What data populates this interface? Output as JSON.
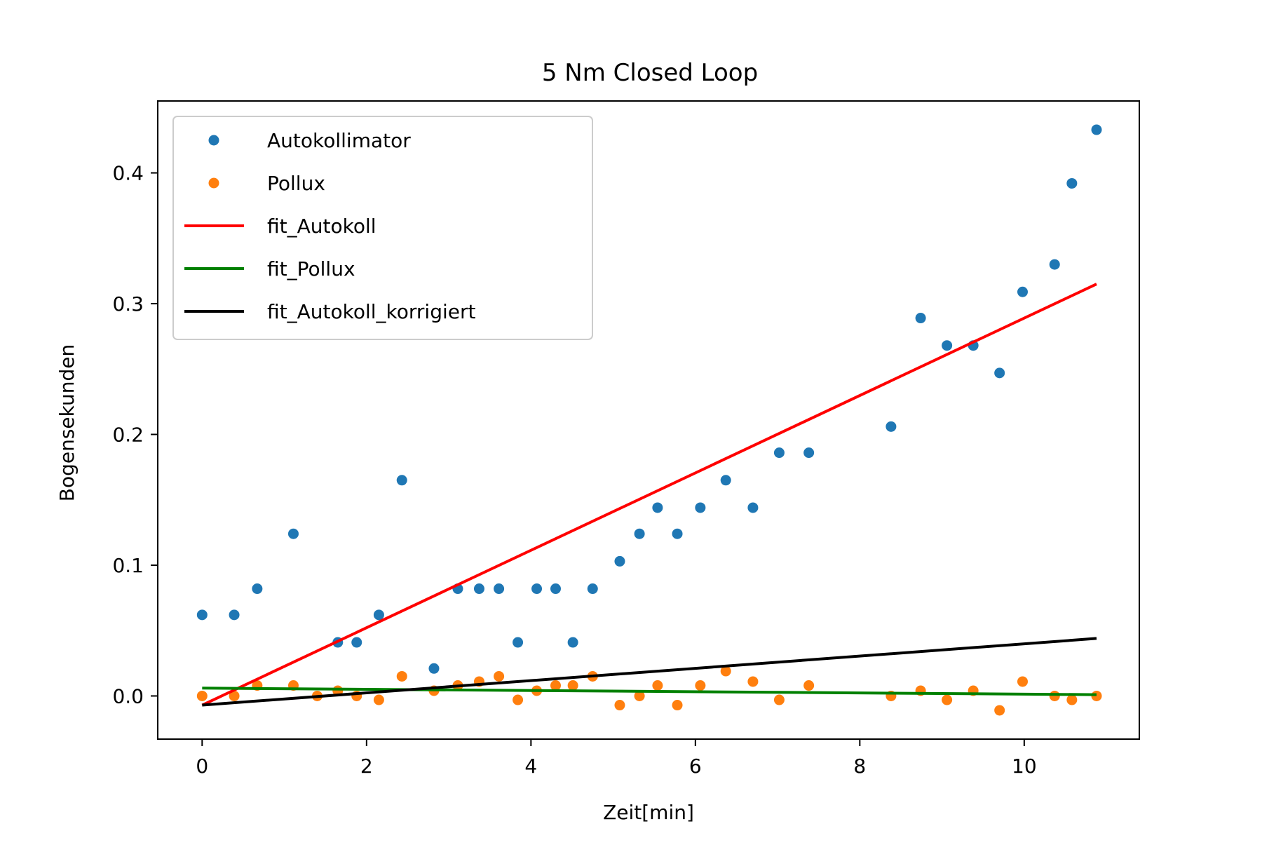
{
  "chart_data": {
    "type": "scatter",
    "title": "5 Nm Closed Loop",
    "xlabel": "Zeit[min]",
    "ylabel": "Bogensekunden",
    "xlim": [
      -0.54,
      11.4
    ],
    "ylim": [
      -0.033,
      0.455
    ],
    "xticks": [
      {
        "value": 0,
        "label": "0"
      },
      {
        "value": 2,
        "label": "2"
      },
      {
        "value": 4,
        "label": "4"
      },
      {
        "value": 6,
        "label": "6"
      },
      {
        "value": 8,
        "label": "8"
      },
      {
        "value": 10,
        "label": "10"
      }
    ],
    "yticks": [
      {
        "value": 0.0,
        "label": "0.0"
      },
      {
        "value": 0.1,
        "label": "0.1"
      },
      {
        "value": 0.2,
        "label": "0.2"
      },
      {
        "value": 0.3,
        "label": "0.3"
      },
      {
        "value": 0.4,
        "label": "0.4"
      }
    ],
    "grid": false,
    "legend_position": "upper-left",
    "scatter_series": [
      {
        "name": "Autokollimator",
        "color": "#1f77b4",
        "points": [
          [
            0.0,
            0.062
          ],
          [
            0.39,
            0.062
          ],
          [
            0.67,
            0.082
          ],
          [
            1.11,
            0.124
          ],
          [
            1.65,
            0.041
          ],
          [
            1.88,
            0.041
          ],
          [
            2.15,
            0.062
          ],
          [
            2.43,
            0.165
          ],
          [
            2.82,
            0.021
          ],
          [
            3.11,
            0.082
          ],
          [
            3.37,
            0.082
          ],
          [
            3.61,
            0.082
          ],
          [
            3.84,
            0.041
          ],
          [
            4.07,
            0.082
          ],
          [
            4.3,
            0.082
          ],
          [
            4.51,
            0.041
          ],
          [
            4.75,
            0.082
          ],
          [
            5.08,
            0.103
          ],
          [
            5.32,
            0.124
          ],
          [
            5.54,
            0.144
          ],
          [
            5.78,
            0.124
          ],
          [
            6.06,
            0.144
          ],
          [
            6.37,
            0.165
          ],
          [
            6.7,
            0.144
          ],
          [
            7.02,
            0.186
          ],
          [
            7.38,
            0.186
          ],
          [
            8.38,
            0.206
          ],
          [
            8.74,
            0.289
          ],
          [
            9.06,
            0.268
          ],
          [
            9.38,
            0.268
          ],
          [
            9.7,
            0.247
          ],
          [
            9.98,
            0.309
          ],
          [
            10.37,
            0.33
          ],
          [
            10.58,
            0.392
          ],
          [
            10.88,
            0.433
          ]
        ]
      },
      {
        "name": "Pollux",
        "color": "#ff7f0e",
        "points": [
          [
            0.0,
            0.0
          ],
          [
            0.39,
            0.0
          ],
          [
            0.67,
            0.008
          ],
          [
            1.11,
            0.008
          ],
          [
            1.4,
            0.0
          ],
          [
            1.65,
            0.004
          ],
          [
            1.88,
            0.0
          ],
          [
            2.15,
            -0.003
          ],
          [
            2.43,
            0.015
          ],
          [
            2.82,
            0.004
          ],
          [
            3.11,
            0.008
          ],
          [
            3.37,
            0.011
          ],
          [
            3.61,
            0.015
          ],
          [
            3.84,
            -0.003
          ],
          [
            4.07,
            0.004
          ],
          [
            4.3,
            0.008
          ],
          [
            4.51,
            0.008
          ],
          [
            4.75,
            0.015
          ],
          [
            5.08,
            -0.007
          ],
          [
            5.32,
            0.0
          ],
          [
            5.54,
            0.008
          ],
          [
            5.78,
            -0.007
          ],
          [
            6.06,
            0.008
          ],
          [
            6.37,
            0.019
          ],
          [
            6.7,
            0.011
          ],
          [
            7.02,
            -0.003
          ],
          [
            7.38,
            0.008
          ],
          [
            8.38,
            0.0
          ],
          [
            8.74,
            0.004
          ],
          [
            9.06,
            -0.003
          ],
          [
            9.38,
            0.004
          ],
          [
            9.7,
            -0.011
          ],
          [
            9.98,
            0.011
          ],
          [
            10.37,
            0.0
          ],
          [
            10.58,
            -0.003
          ],
          [
            10.88,
            0.0
          ]
        ]
      }
    ],
    "line_series": [
      {
        "name": "fit_Autokoll",
        "color": "#ff0000",
        "points": [
          [
            0.0,
            -0.007
          ],
          [
            10.88,
            0.315
          ]
        ]
      },
      {
        "name": "fit_Pollux",
        "color": "#008000",
        "points": [
          [
            0.0,
            0.006
          ],
          [
            10.88,
            0.001
          ]
        ]
      },
      {
        "name": "fit_Autokoll_korrigiert",
        "color": "#000000",
        "points": [
          [
            0.0,
            -0.007
          ],
          [
            10.88,
            0.044
          ]
        ]
      }
    ],
    "legend": [
      {
        "label": "Autokollimator",
        "kind": "marker",
        "color": "#1f77b4"
      },
      {
        "label": "Pollux",
        "kind": "marker",
        "color": "#ff7f0e"
      },
      {
        "label": "fit_Autokoll",
        "kind": "line",
        "color": "#ff0000"
      },
      {
        "label": "fit_Pollux",
        "kind": "line",
        "color": "#008000"
      },
      {
        "label": "fit_Autokoll_korrigiert",
        "kind": "line",
        "color": "#000000"
      }
    ]
  }
}
